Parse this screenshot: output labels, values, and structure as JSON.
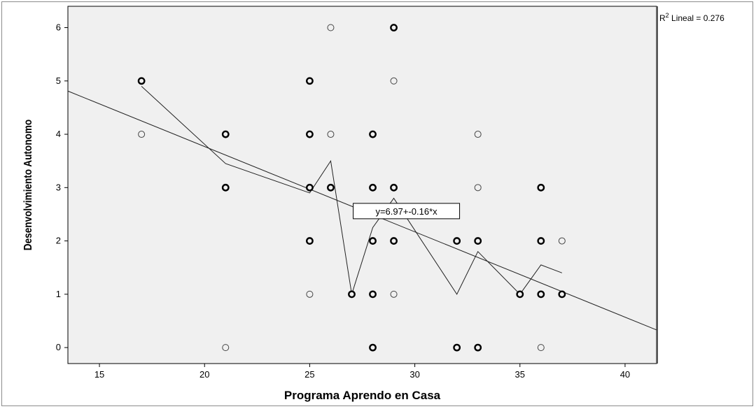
{
  "chart_data": {
    "type": "scatter",
    "title": "",
    "xlabel": "Programa Aprendo en Casa",
    "ylabel": "Desenvolvimiento Autonomo",
    "xlim": [
      13.5,
      41.5
    ],
    "ylim": [
      -0.3,
      6.4
    ],
    "x_ticks": [
      15,
      20,
      25,
      30,
      35,
      40
    ],
    "y_ticks": [
      0,
      1,
      2,
      3,
      4,
      5,
      6
    ],
    "grid": false,
    "points": [
      {
        "x": 17,
        "y": 5,
        "bold": true
      },
      {
        "x": 17,
        "y": 4,
        "bold": false
      },
      {
        "x": 21,
        "y": 4,
        "bold": true
      },
      {
        "x": 21,
        "y": 3,
        "bold": true
      },
      {
        "x": 21,
        "y": 0,
        "bold": false
      },
      {
        "x": 25,
        "y": 5,
        "bold": true
      },
      {
        "x": 25,
        "y": 4,
        "bold": true
      },
      {
        "x": 25,
        "y": 3,
        "bold": true
      },
      {
        "x": 25,
        "y": 2,
        "bold": true
      },
      {
        "x": 25,
        "y": 1,
        "bold": false
      },
      {
        "x": 26,
        "y": 6,
        "bold": false
      },
      {
        "x": 26,
        "y": 4,
        "bold": false
      },
      {
        "x": 26,
        "y": 3,
        "bold": true
      },
      {
        "x": 27,
        "y": 1,
        "bold": true
      },
      {
        "x": 28,
        "y": 4,
        "bold": true
      },
      {
        "x": 28,
        "y": 3,
        "bold": true
      },
      {
        "x": 28,
        "y": 2,
        "bold": true
      },
      {
        "x": 28,
        "y": 1,
        "bold": true
      },
      {
        "x": 28,
        "y": 0,
        "bold": true
      },
      {
        "x": 29,
        "y": 6,
        "bold": true
      },
      {
        "x": 29,
        "y": 5,
        "bold": false
      },
      {
        "x": 29,
        "y": 3,
        "bold": true
      },
      {
        "x": 29,
        "y": 2,
        "bold": true
      },
      {
        "x": 29,
        "y": 1,
        "bold": false
      },
      {
        "x": 32,
        "y": 2,
        "bold": true
      },
      {
        "x": 32,
        "y": 0,
        "bold": true
      },
      {
        "x": 33,
        "y": 4,
        "bold": false
      },
      {
        "x": 33,
        "y": 3,
        "bold": false
      },
      {
        "x": 33,
        "y": 2,
        "bold": true
      },
      {
        "x": 33,
        "y": 0,
        "bold": true
      },
      {
        "x": 35,
        "y": 1,
        "bold": true
      },
      {
        "x": 36,
        "y": 3,
        "bold": true
      },
      {
        "x": 36,
        "y": 2,
        "bold": true
      },
      {
        "x": 36,
        "y": 1,
        "bold": true
      },
      {
        "x": 36,
        "y": 0,
        "bold": false
      },
      {
        "x": 37,
        "y": 2,
        "bold": false
      },
      {
        "x": 37,
        "y": 1,
        "bold": true
      }
    ],
    "series": [
      {
        "type": "line",
        "x": [
          17,
          21,
          25,
          26,
          27,
          28,
          29,
          32,
          33,
          35,
          36,
          37
        ],
        "y": [
          4.9,
          3.45,
          2.9,
          3.5,
          1.0,
          2.25,
          2.8,
          1.0,
          1.8,
          1.0,
          1.55,
          1.4
        ]
      }
    ],
    "fit_line": {
      "intercept": 6.97,
      "slope": -0.16
    },
    "fit_label": "y=6.97+-0.16*x",
    "fit_label_anchor": {
      "x": 29.6,
      "y": 2.56
    },
    "r2_label": {
      "prefix": "R",
      "sup": "2",
      "text": " Lineal = 0.276"
    }
  }
}
